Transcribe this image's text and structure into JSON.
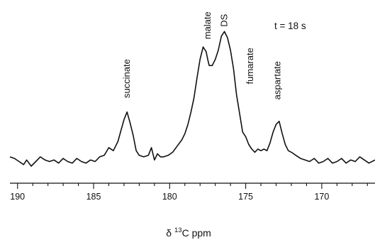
{
  "chart_data": {
    "type": "line",
    "title": "",
    "annotation": "t = 18 s",
    "xlabel": {
      "delta": "δ",
      "mass": "13",
      "rest": "C ppm"
    },
    "ylabel": "",
    "x_reversed": true,
    "xlim": [
      190.5,
      166.5
    ],
    "x_ticks": [
      190,
      185,
      180,
      175,
      170
    ],
    "x_tick_labels": [
      "190",
      "185",
      "180",
      "175",
      "170"
    ],
    "minor_tick_step": 1,
    "y_axis_shown": false,
    "grid": false,
    "ylim": [
      0,
      1.0
    ],
    "peak_labels": [
      {
        "label": "succinate",
        "ppm": 182.8,
        "y": 0.55
      },
      {
        "label": "malate",
        "ppm": 177.5,
        "y": 0.93
      },
      {
        "label": "DS",
        "ppm": 176.4,
        "y": 1.01
      },
      {
        "label": "fumarate",
        "ppm": 174.7,
        "y": 0.64
      },
      {
        "label": "aspartate",
        "ppm": 172.9,
        "y": 0.54
      }
    ],
    "series": [
      {
        "x": [
          190.5,
          190.2,
          189.9,
          189.6,
          189.4,
          189.1,
          188.8,
          188.5,
          188.2,
          187.9,
          187.6,
          187.3,
          187.0,
          186.7,
          186.4,
          186.1,
          185.8,
          185.5,
          185.2,
          184.9,
          184.6,
          184.3,
          184.0,
          183.7,
          183.4,
          183.2,
          183.0,
          182.8,
          182.6,
          182.4,
          182.2,
          182.0,
          181.7,
          181.4,
          181.2,
          181.0,
          180.8,
          180.6,
          180.4,
          180.1,
          179.8,
          179.5,
          179.2,
          179.0,
          178.8,
          178.6,
          178.4,
          178.2,
          178.0,
          177.8,
          177.6,
          177.5,
          177.4,
          177.2,
          177.0,
          176.8,
          176.6,
          176.4,
          176.2,
          176.0,
          175.8,
          175.6,
          175.4,
          175.2,
          175.0,
          174.8,
          174.6,
          174.4,
          174.2,
          174.0,
          173.8,
          173.6,
          173.4,
          173.2,
          173.0,
          172.8,
          172.6,
          172.4,
          172.2,
          172.0,
          171.7,
          171.4,
          171.1,
          170.8,
          170.5,
          170.2,
          169.9,
          169.6,
          169.3,
          169.0,
          168.7,
          168.4,
          168.1,
          167.8,
          167.5,
          167.2,
          166.9,
          166.5
        ],
        "y": [
          0.17,
          0.16,
          0.14,
          0.12,
          0.15,
          0.11,
          0.14,
          0.17,
          0.15,
          0.14,
          0.15,
          0.13,
          0.16,
          0.14,
          0.13,
          0.16,
          0.14,
          0.13,
          0.15,
          0.14,
          0.17,
          0.18,
          0.23,
          0.21,
          0.27,
          0.34,
          0.41,
          0.46,
          0.39,
          0.31,
          0.21,
          0.18,
          0.17,
          0.18,
          0.23,
          0.15,
          0.19,
          0.17,
          0.17,
          0.18,
          0.2,
          0.24,
          0.28,
          0.32,
          0.38,
          0.46,
          0.55,
          0.68,
          0.8,
          0.88,
          0.85,
          0.8,
          0.76,
          0.76,
          0.8,
          0.86,
          0.95,
          0.98,
          0.94,
          0.86,
          0.74,
          0.57,
          0.45,
          0.33,
          0.3,
          0.25,
          0.22,
          0.2,
          0.22,
          0.21,
          0.22,
          0.21,
          0.26,
          0.33,
          0.38,
          0.4,
          0.32,
          0.25,
          0.21,
          0.2,
          0.18,
          0.16,
          0.15,
          0.14,
          0.16,
          0.13,
          0.14,
          0.16,
          0.13,
          0.14,
          0.16,
          0.13,
          0.15,
          0.14,
          0.17,
          0.15,
          0.13,
          0.15
        ]
      }
    ]
  }
}
